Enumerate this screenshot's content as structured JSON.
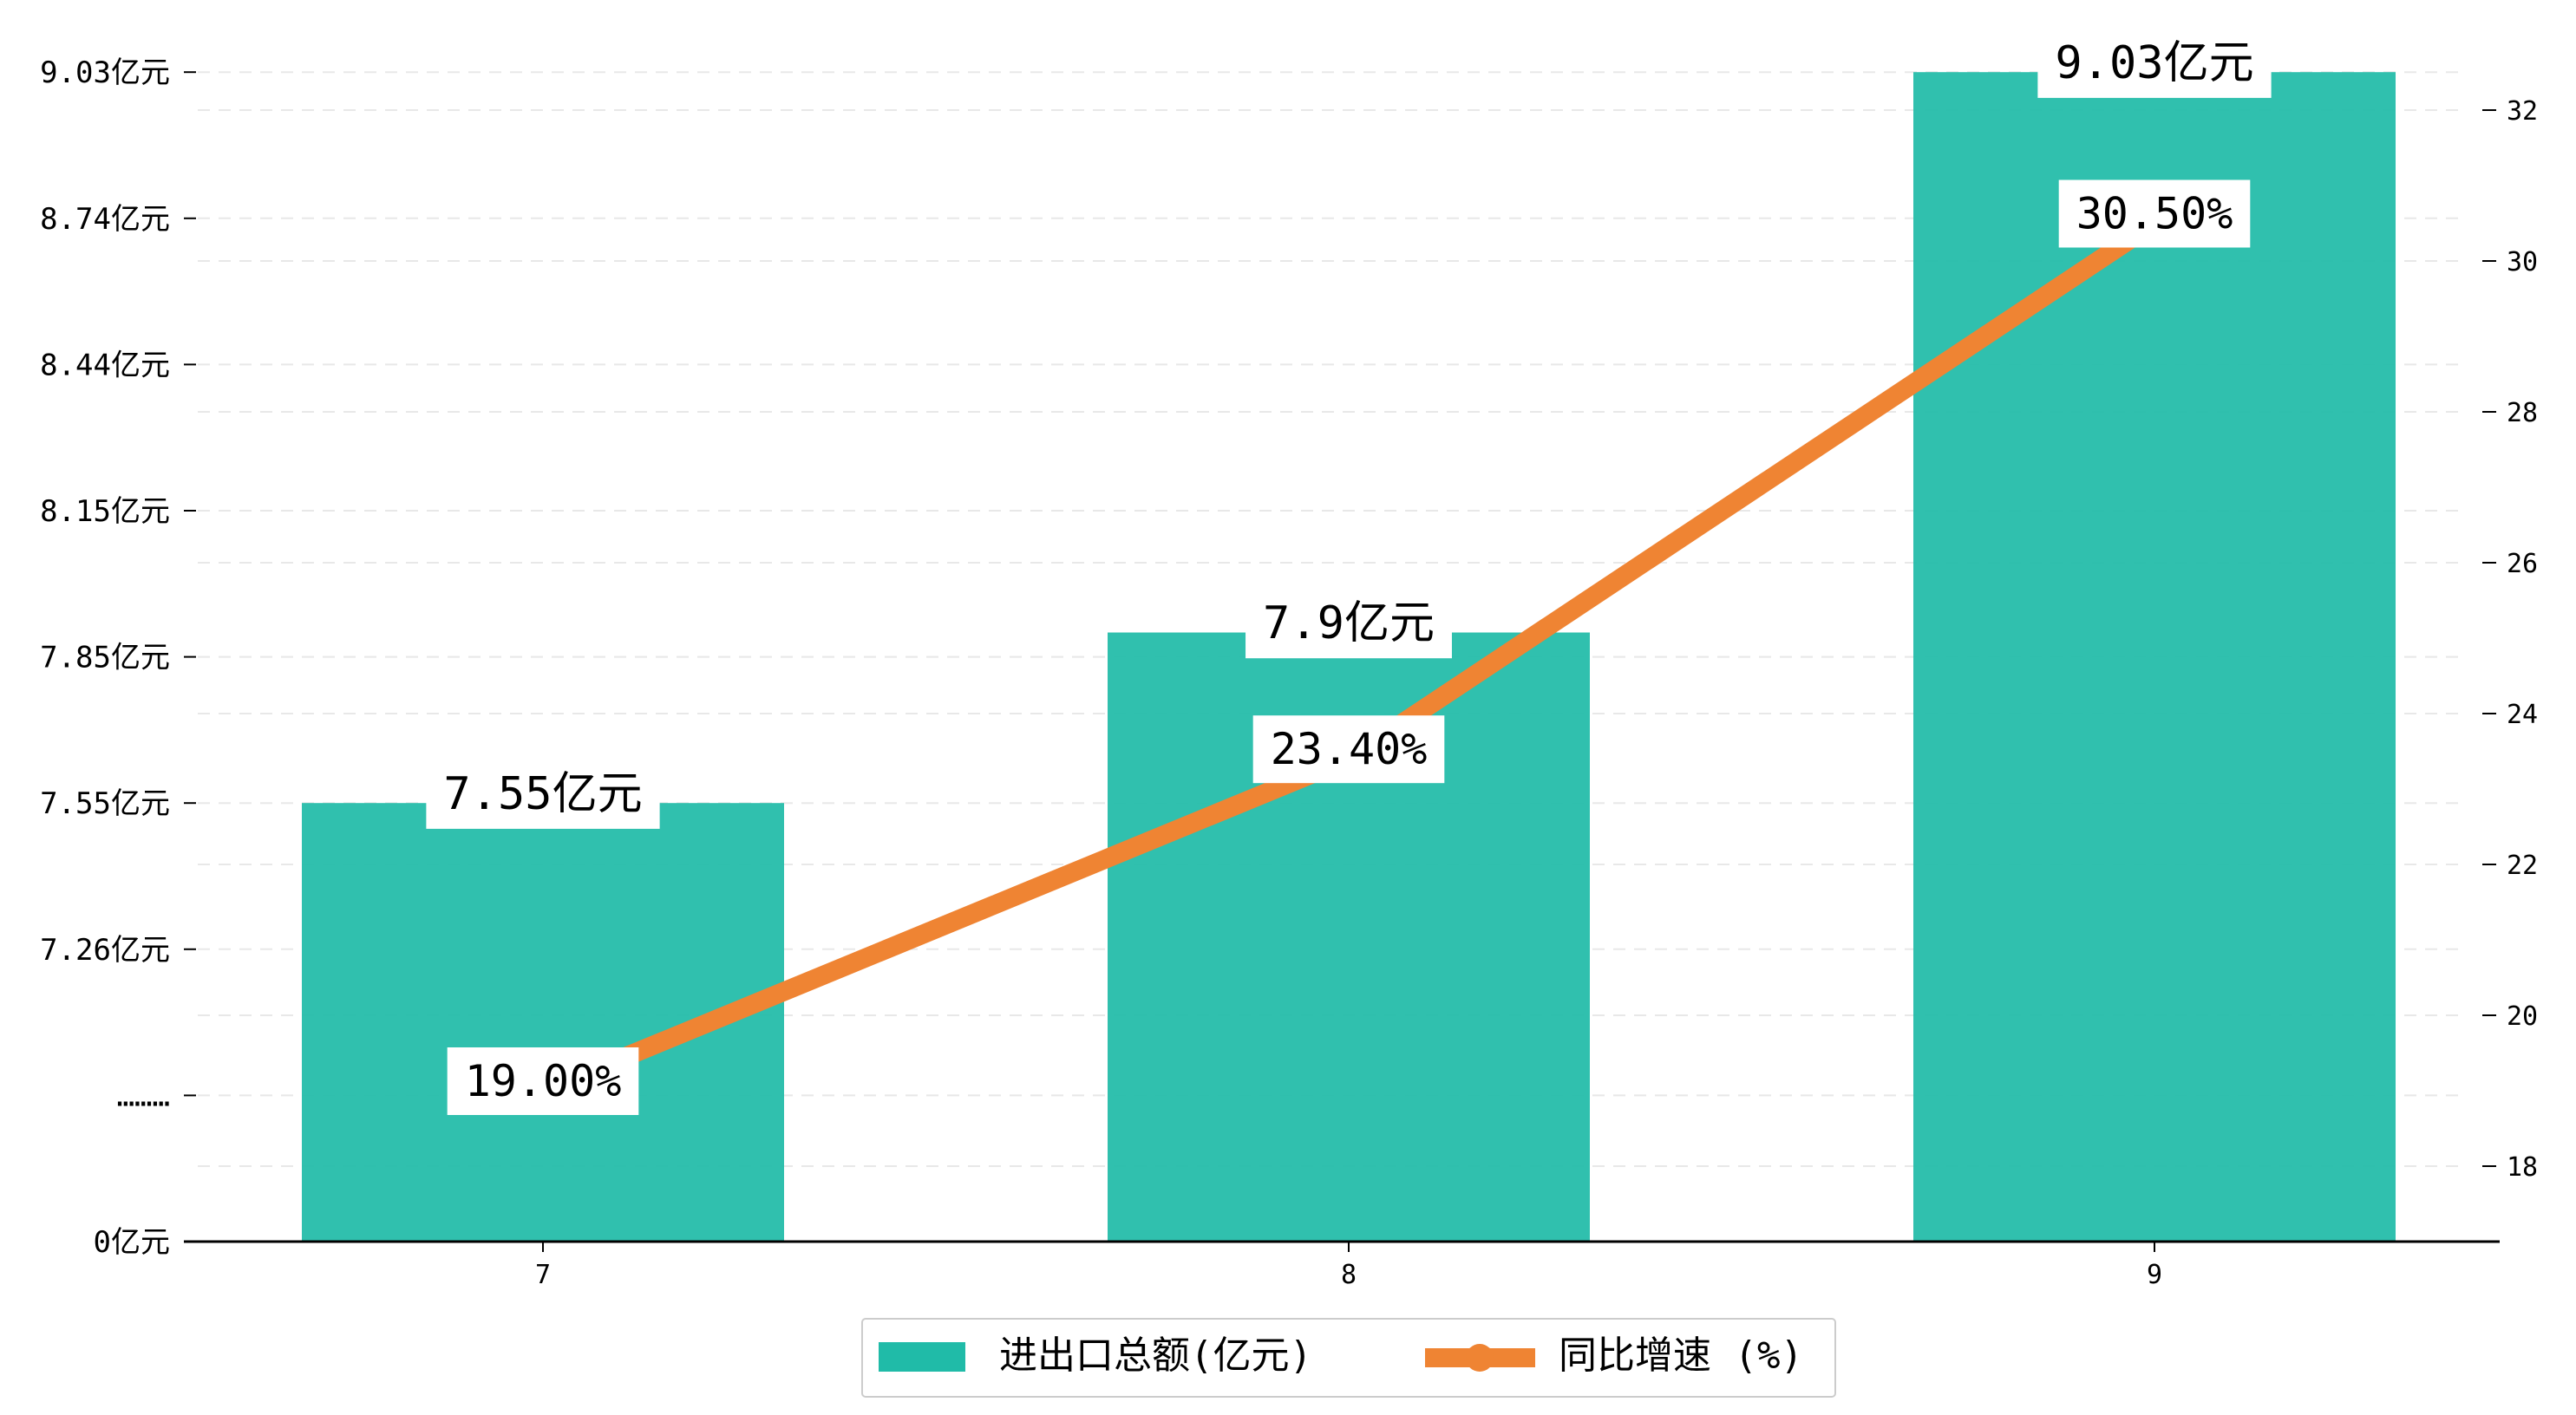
{
  "chart_data": {
    "type": "bar+line",
    "categories": [
      "7",
      "8",
      "9"
    ],
    "series": [
      {
        "name": "进出口总额(亿元)",
        "kind": "bar",
        "axis": "left",
        "values": [
          7.55,
          7.9,
          9.03
        ],
        "labels": [
          "7.55亿元",
          "7.9亿元",
          "9.03亿元"
        ]
      },
      {
        "name": "同比增速 (%)",
        "kind": "line",
        "axis": "right",
        "values": [
          19.0,
          23.4,
          30.5
        ],
        "labels": [
          "19.00%",
          "23.40%",
          "30.50%"
        ]
      }
    ],
    "left_axis": {
      "break": true,
      "ticks": [
        {
          "value": 0,
          "label": "0亿元"
        },
        {
          "value": null,
          "label": "………"
        },
        {
          "value": 7.26,
          "label": "7.26亿元"
        },
        {
          "value": 7.55,
          "label": "7.55亿元"
        },
        {
          "value": 7.85,
          "label": "7.85亿元"
        },
        {
          "value": 8.15,
          "label": "8.15亿元"
        },
        {
          "value": 8.44,
          "label": "8.44亿元"
        },
        {
          "value": 8.74,
          "label": "8.74亿元"
        },
        {
          "value": 9.03,
          "label": "9.03亿元"
        }
      ]
    },
    "right_axis": {
      "ylim": [
        17,
        32.7
      ],
      "ticks": [
        18,
        20,
        22,
        24,
        26,
        28,
        30,
        32
      ]
    },
    "grid": true,
    "legend": "bottom-center",
    "colors": {
      "bar": "#20BBA8",
      "line": "#EF8433",
      "grid": "#e8e8e8",
      "axis": "#000000"
    }
  }
}
